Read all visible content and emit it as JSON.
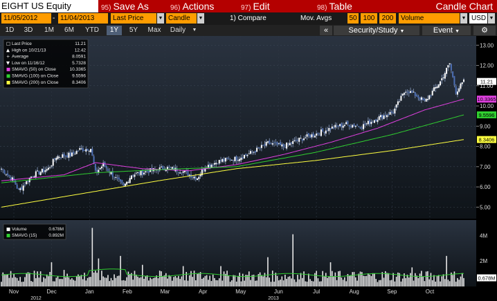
{
  "toolbar": {
    "ticker": "EIGHT US Equity",
    "menu": [
      {
        "num": "95)",
        "label": "Save As"
      },
      {
        "num": "96)",
        "label": "Actions"
      },
      {
        "num": "97)",
        "label": "Edit"
      },
      {
        "num": "98)",
        "label": "Table"
      }
    ],
    "chart_title": "Candle Chart"
  },
  "fields": {
    "start_date": "11/05/2012",
    "end_date": "11/04/2013",
    "price_field": "Last Price",
    "chart_style": "Candle",
    "compare": "1) Compare",
    "mov_avgs_label": "Mov. Avgs",
    "ma1": "50",
    "ma2": "100",
    "ma3": "200",
    "lower_study": "Volume",
    "currency": "USD"
  },
  "periods": [
    "1D",
    "3D",
    "1M",
    "6M",
    "YTD",
    "1Y",
    "5Y",
    "Max"
  ],
  "active_period": "1Y",
  "frequency": "Daily",
  "right_bar": {
    "collapse": "«",
    "security_study": "Security/Study",
    "event": "Event",
    "gear_icon": "gear-icon"
  },
  "legend": [
    {
      "label": "Last Price",
      "value": "11.21",
      "color": "#ffffff"
    },
    {
      "label": "High on 10/21/13",
      "value": "12.42",
      "color": "#ffffff"
    },
    {
      "label": "Average",
      "value": "8.0591",
      "color": "#ffffff"
    },
    {
      "label": "Low on 11/16/12",
      "value": "5.7328",
      "color": "#ffffff"
    },
    {
      "label": "SMAVG (50) on Close",
      "value": "10.3365",
      "color": "#e040e0"
    },
    {
      "label": "SMAVG (100) on Close",
      "value": "9.5596",
      "color": "#30d030"
    },
    {
      "label": "SMAVG (200) on Close",
      "value": "8.3406",
      "color": "#ffff40"
    }
  ],
  "volume_legend": [
    {
      "label": "Volume",
      "value": "0.678M",
      "color": "#ffffff"
    },
    {
      "label": "SMAVG (15)",
      "value": "0.892M",
      "color": "#30d030"
    }
  ],
  "price_badges": [
    {
      "text": "11.21",
      "value": 11.21,
      "bg": "#ffffff",
      "fg": "#000000"
    },
    {
      "text": "10.3365",
      "value": 10.3365,
      "bg": "#e040e0",
      "fg": "#000000"
    },
    {
      "text": "9.5596",
      "value": 9.5596,
      "bg": "#30d030",
      "fg": "#000000"
    },
    {
      "text": "8.3406",
      "value": 8.3406,
      "bg": "#ffff40",
      "fg": "#000000"
    }
  ],
  "volume_badge": {
    "text": "0.678M",
    "value": 0.678
  },
  "chart_data": {
    "type": "candlestick",
    "price_axis": {
      "min": 4.5,
      "max": 13.25,
      "ticks": [
        "5.00",
        "6.00",
        "7.00",
        "8.00",
        "9.00",
        "10.00",
        "11.00",
        "12.00",
        "13.00"
      ]
    },
    "volume_axis": {
      "max": 5,
      "ticks": [
        "2M",
        "4M"
      ]
    },
    "months": [
      "Nov",
      "Dec",
      "Jan",
      "Feb",
      "Mar",
      "Apr",
      "May",
      "Jun",
      "Jul",
      "Aug",
      "Sep",
      "Oct"
    ],
    "years": [
      "2012",
      "2013"
    ],
    "close_keypoints": [
      [
        0,
        6.9
      ],
      [
        8,
        6.3
      ],
      [
        11,
        5.8
      ],
      [
        20,
        6.6
      ],
      [
        30,
        6.9
      ],
      [
        35,
        7.5
      ],
      [
        45,
        7.6
      ],
      [
        50,
        7.85
      ],
      [
        57,
        7.9
      ],
      [
        60,
        6.7
      ],
      [
        65,
        7.1
      ],
      [
        72,
        6.5
      ],
      [
        78,
        6.0
      ],
      [
        83,
        6.6
      ],
      [
        95,
        6.8
      ],
      [
        105,
        6.95
      ],
      [
        115,
        6.8
      ],
      [
        120,
        6.6
      ],
      [
        125,
        6.45
      ],
      [
        130,
        7.0
      ],
      [
        140,
        7.3
      ],
      [
        150,
        7.4
      ],
      [
        160,
        7.7
      ],
      [
        170,
        8.15
      ],
      [
        180,
        8.0
      ],
      [
        192,
        8.4
      ],
      [
        200,
        8.6
      ],
      [
        210,
        8.9
      ],
      [
        220,
        9.1
      ],
      [
        230,
        9.0
      ],
      [
        240,
        9.4
      ],
      [
        250,
        9.7
      ],
      [
        258,
        10.8
      ],
      [
        265,
        10.5
      ],
      [
        270,
        10.2
      ],
      [
        280,
        11.2
      ],
      [
        286,
        12.1
      ],
      [
        290,
        10.7
      ],
      [
        295,
        11.2
      ]
    ],
    "sma50_keypoints": [
      [
        0,
        6.3
      ],
      [
        40,
        6.6
      ],
      [
        60,
        7.2
      ],
      [
        90,
        6.9
      ],
      [
        120,
        6.8
      ],
      [
        150,
        7.1
      ],
      [
        180,
        7.6
      ],
      [
        210,
        8.2
      ],
      [
        240,
        8.9
      ],
      [
        270,
        9.8
      ],
      [
        295,
        10.34
      ]
    ],
    "sma100_keypoints": [
      [
        0,
        6.2
      ],
      [
        60,
        6.7
      ],
      [
        100,
        6.85
      ],
      [
        150,
        7.0
      ],
      [
        200,
        7.7
      ],
      [
        250,
        8.6
      ],
      [
        295,
        9.56
      ]
    ],
    "sma200_keypoints": [
      [
        0,
        5.0
      ],
      [
        100,
        6.3
      ],
      [
        150,
        6.9
      ],
      [
        200,
        7.3
      ],
      [
        250,
        7.8
      ],
      [
        295,
        8.34
      ]
    ],
    "volume_spikes": [
      [
        32,
        1.9
      ],
      [
        40,
        1.3
      ],
      [
        58,
        4.6
      ],
      [
        62,
        2.2
      ],
      [
        76,
        2.4
      ],
      [
        90,
        1.7
      ],
      [
        116,
        1.6
      ],
      [
        140,
        1.6
      ],
      [
        170,
        2.3
      ],
      [
        186,
        4.1
      ],
      [
        210,
        1.9
      ],
      [
        245,
        1.2
      ],
      [
        262,
        1.5
      ],
      [
        284,
        2.4
      ]
    ],
    "volume_sma15_level": 0.9
  }
}
